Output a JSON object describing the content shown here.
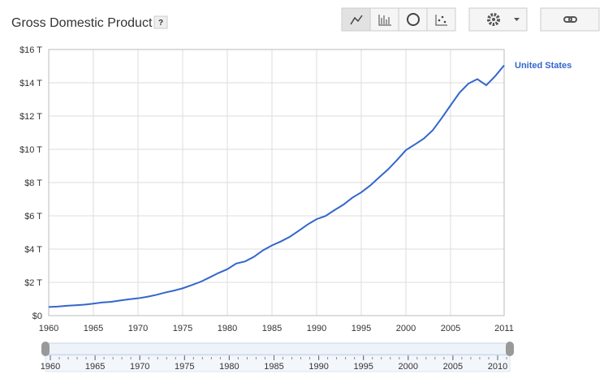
{
  "title": "Gross Domestic Product",
  "help": "?",
  "chart_data": {
    "type": "line",
    "x": [
      1960,
      1961,
      1962,
      1963,
      1964,
      1965,
      1966,
      1967,
      1968,
      1969,
      1970,
      1971,
      1972,
      1973,
      1974,
      1975,
      1976,
      1977,
      1978,
      1979,
      1980,
      1981,
      1982,
      1983,
      1984,
      1985,
      1986,
      1987,
      1988,
      1989,
      1990,
      1991,
      1992,
      1993,
      1994,
      1995,
      1996,
      1997,
      1998,
      1999,
      2000,
      2001,
      2002,
      2003,
      2004,
      2005,
      2006,
      2007,
      2008,
      2009,
      2010,
      2011
    ],
    "series": [
      {
        "name": "United States",
        "color": "#3366cc",
        "values": [
          0.52,
          0.54,
          0.59,
          0.62,
          0.66,
          0.72,
          0.79,
          0.83,
          0.91,
          0.98,
          1.04,
          1.13,
          1.24,
          1.38,
          1.5,
          1.64,
          1.83,
          2.03,
          2.29,
          2.56,
          2.79,
          3.13,
          3.26,
          3.54,
          3.93,
          4.22,
          4.46,
          4.74,
          5.1,
          5.48,
          5.8,
          5.99,
          6.34,
          6.67,
          7.09,
          7.41,
          7.82,
          8.31,
          8.79,
          9.35,
          9.95,
          10.29,
          10.64,
          11.14,
          11.87,
          12.64,
          13.4,
          13.95,
          14.22,
          13.85,
          14.4,
          15.05
        ]
      }
    ],
    "xlim": [
      1960,
      2011
    ],
    "xticks": [
      1960,
      1965,
      1970,
      1975,
      1980,
      1985,
      1990,
      1995,
      2000,
      2005,
      2011
    ],
    "ylim": [
      0,
      16
    ],
    "yticks": [
      {
        "value": 0,
        "label": "$0"
      },
      {
        "value": 2,
        "label": "$2 T"
      },
      {
        "value": 4,
        "label": "$4 T"
      },
      {
        "value": 6,
        "label": "$6 T"
      },
      {
        "value": 8,
        "label": "$8 T"
      },
      {
        "value": 10,
        "label": "$10 T"
      },
      {
        "value": 12,
        "label": "$12 T"
      },
      {
        "value": 14,
        "label": "$14 T"
      },
      {
        "value": 16,
        "label": "$16 T"
      }
    ],
    "grid": true
  },
  "timeline": {
    "ticks": [
      1960,
      1965,
      1970,
      1975,
      1980,
      1985,
      1990,
      1995,
      2000,
      2005,
      2010
    ]
  }
}
